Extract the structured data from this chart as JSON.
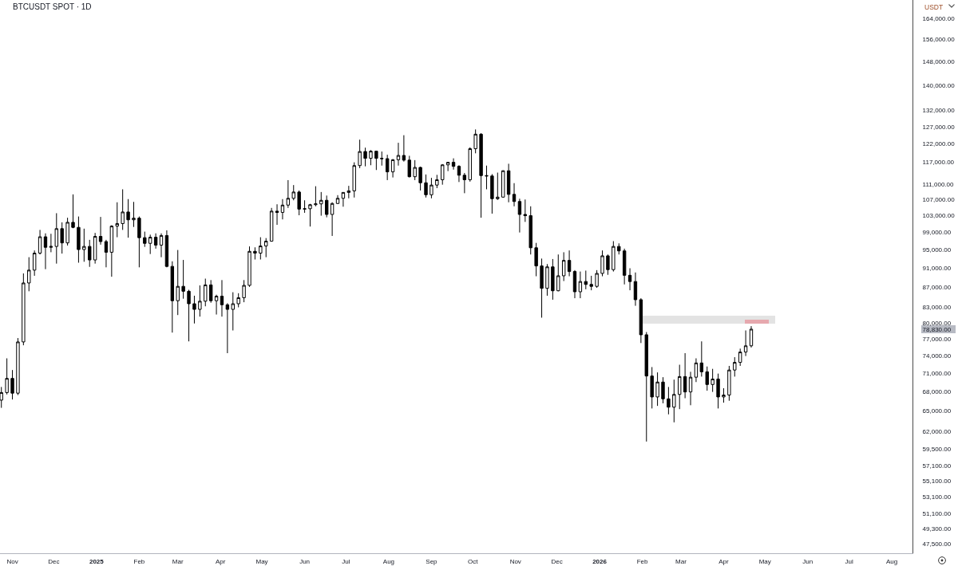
{
  "chart_data": {
    "type": "candlestick",
    "title": "BTCUSDT SPOT · 1D",
    "ylabel": "USDT",
    "color": "#000000",
    "log": true,
    "grid": false,
    "xlim": [
      "2024-10-23",
      "2026-08-16"
    ],
    "ylim": [
      46500,
      171200
    ],
    "xticks": [
      {
        "value": "2024-11-01",
        "label": "Nov"
      },
      {
        "value": "2024-12-01",
        "label": "Dec"
      },
      {
        "value": "2025-01-01",
        "label": "2025"
      },
      {
        "value": "2025-02-01",
        "label": "Feb"
      },
      {
        "value": "2025-03-01",
        "label": "Mar"
      },
      {
        "value": "2025-04-01",
        "label": "Apr"
      },
      {
        "value": "2025-05-01",
        "label": "May"
      },
      {
        "value": "2025-06-01",
        "label": "Jun"
      },
      {
        "value": "2025-07-01",
        "label": "Jul"
      },
      {
        "value": "2025-08-01",
        "label": "Aug"
      },
      {
        "value": "2025-09-01",
        "label": "Sep"
      },
      {
        "value": "2025-10-01",
        "label": "Oct"
      },
      {
        "value": "2025-11-01",
        "label": "Nov"
      },
      {
        "value": "2025-12-01",
        "label": "Dec"
      },
      {
        "value": "2026-01-01",
        "label": "2026"
      },
      {
        "value": "2026-02-01",
        "label": "Feb"
      },
      {
        "value": "2026-03-01",
        "label": "Mar"
      },
      {
        "value": "2026-04-01",
        "label": "Apr"
      },
      {
        "value": "2026-05-01",
        "label": "May"
      },
      {
        "value": "2026-06-01",
        "label": "Jun"
      },
      {
        "value": "2026-07-01",
        "label": "Jul"
      },
      {
        "value": "2026-08-01",
        "label": "Aug"
      }
    ],
    "yticks": [
      {
        "value": 164000,
        "label": "164,000.00"
      },
      {
        "value": 156000,
        "label": "156,000.00"
      },
      {
        "value": 148000,
        "label": "148,000.00"
      },
      {
        "value": 140000,
        "label": "140,000.00"
      },
      {
        "value": 132000,
        "label": "132,000.00"
      },
      {
        "value": 127000,
        "label": "127,000.00"
      },
      {
        "value": 122000,
        "label": "122,000.00"
      },
      {
        "value": 117000,
        "label": "117,000.00"
      },
      {
        "value": 111000,
        "label": "111,000.00"
      },
      {
        "value": 107000,
        "label": "107,000.00"
      },
      {
        "value": 103000,
        "label": "103,000.00"
      },
      {
        "value": 99000,
        "label": "99,000.00"
      },
      {
        "value": 95000,
        "label": "95,000.00"
      },
      {
        "value": 91000,
        "label": "91,000.00"
      },
      {
        "value": 87000,
        "label": "87,000.00"
      },
      {
        "value": 83000,
        "label": "83,000.00"
      },
      {
        "value": 80000,
        "label": "80,000.00"
      },
      {
        "value": 78830,
        "label": "78,830.00"
      },
      {
        "value": 77000,
        "label": "77,000.00"
      },
      {
        "value": 74000,
        "label": "74,000.00"
      },
      {
        "value": 71000,
        "label": "71,000.00"
      },
      {
        "value": 68000,
        "label": "68,000.00"
      },
      {
        "value": 65000,
        "label": "65,000.00"
      },
      {
        "value": 62000,
        "label": "62,000.00"
      },
      {
        "value": 59500,
        "label": "59,500.00"
      },
      {
        "value": 57100,
        "label": "57,100.00"
      },
      {
        "value": 55100,
        "label": "55,100.00"
      },
      {
        "value": 53100,
        "label": "53,100.00"
      },
      {
        "value": 51100,
        "label": "51,100.00"
      },
      {
        "value": 49300,
        "label": "49,300.00"
      },
      {
        "value": 47500,
        "label": "47,500.00"
      }
    ],
    "x": [
      "2024-10-24",
      "2024-10-28",
      "2024-11-01",
      "2024-11-05",
      "2024-11-09",
      "2024-11-13",
      "2024-11-17",
      "2024-11-21",
      "2024-11-25",
      "2024-11-29",
      "2024-12-03",
      "2024-12-07",
      "2024-12-11",
      "2024-12-15",
      "2024-12-19",
      "2024-12-23",
      "2024-12-27",
      "2024-12-31",
      "2025-01-04",
      "2025-01-08",
      "2025-01-12",
      "2025-01-16",
      "2025-01-20",
      "2025-01-24",
      "2025-01-28",
      "2025-02-01",
      "2025-02-05",
      "2025-02-09",
      "2025-02-13",
      "2025-02-17",
      "2025-02-21",
      "2025-02-25",
      "2025-03-01",
      "2025-03-05",
      "2025-03-09",
      "2025-03-13",
      "2025-03-17",
      "2025-03-21",
      "2025-03-25",
      "2025-03-29",
      "2025-04-02",
      "2025-04-06",
      "2025-04-10",
      "2025-04-14",
      "2025-04-18",
      "2025-04-22",
      "2025-04-26",
      "2025-04-30",
      "2025-05-04",
      "2025-05-08",
      "2025-05-12",
      "2025-05-16",
      "2025-05-20",
      "2025-05-24",
      "2025-05-28",
      "2025-06-01",
      "2025-06-05",
      "2025-06-09",
      "2025-06-13",
      "2025-06-17",
      "2025-06-21",
      "2025-06-25",
      "2025-06-29",
      "2025-07-03",
      "2025-07-07",
      "2025-07-11",
      "2025-07-15",
      "2025-07-19",
      "2025-07-23",
      "2025-07-27",
      "2025-07-31",
      "2025-08-04",
      "2025-08-08",
      "2025-08-12",
      "2025-08-16",
      "2025-08-20",
      "2025-08-24",
      "2025-08-28",
      "2025-09-01",
      "2025-09-05",
      "2025-09-09",
      "2025-09-13",
      "2025-09-17",
      "2025-09-21",
      "2025-09-25",
      "2025-09-29",
      "2025-10-03",
      "2025-10-07",
      "2025-10-11",
      "2025-10-15",
      "2025-10-19",
      "2025-10-23",
      "2025-10-27",
      "2025-10-31",
      "2025-11-04",
      "2025-11-08",
      "2025-11-12",
      "2025-11-16",
      "2025-11-20",
      "2025-11-24",
      "2025-11-28",
      "2025-12-02",
      "2025-12-06",
      "2025-12-10",
      "2025-12-14",
      "2025-12-18",
      "2025-12-22",
      "2025-12-26",
      "2025-12-30",
      "2026-01-03",
      "2026-01-07",
      "2026-01-11",
      "2026-01-15",
      "2026-01-19",
      "2026-01-23",
      "2026-01-27",
      "2026-01-31",
      "2026-02-04",
      "2026-02-08",
      "2026-02-12",
      "2026-02-16",
      "2026-02-20",
      "2026-02-24",
      "2026-02-28",
      "2026-03-04",
      "2026-03-08",
      "2026-03-12",
      "2026-03-16",
      "2026-03-20",
      "2026-03-24",
      "2026-03-28",
      "2026-04-01",
      "2026-04-05",
      "2026-04-09",
      "2026-04-13",
      "2026-04-17",
      "2026-04-21"
    ],
    "ohlc": [
      [
        66700,
        68800,
        65500,
        67900
      ],
      [
        67900,
        73600,
        67600,
        70200
      ],
      [
        70200,
        71600,
        66800,
        67800
      ],
      [
        67800,
        77200,
        67500,
        76500
      ],
      [
        76500,
        89900,
        75900,
        87900
      ],
      [
        87900,
        93400,
        86200,
        90600
      ],
      [
        90600,
        94900,
        89400,
        94300
      ],
      [
        94300,
        99600,
        94000,
        98000
      ],
      [
        98000,
        98800,
        90800,
        95600
      ],
      [
        95600,
        98700,
        94500,
        95800
      ],
      [
        95800,
        103600,
        92000,
        99900
      ],
      [
        99900,
        101400,
        94200,
        96600
      ],
      [
        96600,
        102500,
        96000,
        101400
      ],
      [
        101400,
        108300,
        100000,
        100200
      ],
      [
        100200,
        102800,
        92200,
        95100
      ],
      [
        95100,
        99900,
        92400,
        95800
      ],
      [
        95800,
        97300,
        91300,
        92800
      ],
      [
        92800,
        98900,
        92000,
        98100
      ],
      [
        98100,
        102700,
        96200,
        96900
      ],
      [
        96900,
        97300,
        91200,
        94500
      ],
      [
        94500,
        100700,
        89200,
        100500
      ],
      [
        100500,
        106300,
        97900,
        101100
      ],
      [
        101100,
        109600,
        99600,
        103900
      ],
      [
        103900,
        107100,
        97800,
        102000
      ],
      [
        102000,
        106400,
        100300,
        102400
      ],
      [
        102400,
        102800,
        91200,
        97800
      ],
      [
        97800,
        99200,
        95700,
        96500
      ],
      [
        96500,
        98500,
        94100,
        97900
      ],
      [
        97900,
        98800,
        95300,
        96100
      ],
      [
        96100,
        98800,
        93400,
        98300
      ],
      [
        98300,
        99500,
        91200,
        91400
      ],
      [
        91400,
        92500,
        78200,
        84300
      ],
      [
        84300,
        95000,
        81500,
        87200
      ],
      [
        87200,
        92800,
        84700,
        86200
      ],
      [
        86200,
        86500,
        76600,
        83700
      ],
      [
        83700,
        85300,
        79900,
        82600
      ],
      [
        82600,
        87400,
        81200,
        84200
      ],
      [
        84200,
        88800,
        83200,
        87500
      ],
      [
        87500,
        88500,
        83900,
        84300
      ],
      [
        84300,
        85500,
        81600,
        85200
      ],
      [
        85200,
        88500,
        81200,
        83500
      ],
      [
        83500,
        83800,
        74500,
        82600
      ],
      [
        82600,
        86000,
        78600,
        83700
      ],
      [
        83700,
        85800,
        83000,
        84900
      ],
      [
        84900,
        88500,
        84000,
        87400
      ],
      [
        87400,
        95800,
        87100,
        94700
      ],
      [
        94700,
        95600,
        92900,
        94300
      ],
      [
        94300,
        97900,
        92900,
        95900
      ],
      [
        95900,
        97700,
        93400,
        97000
      ],
      [
        97000,
        104900,
        96900,
        104100
      ],
      [
        104100,
        105800,
        100800,
        103800
      ],
      [
        103800,
        107100,
        102100,
        105600
      ],
      [
        105600,
        112000,
        104900,
        107300
      ],
      [
        107300,
        110700,
        106800,
        108900
      ],
      [
        108900,
        109300,
        103100,
        104600
      ],
      [
        104600,
        106800,
        103700,
        104700
      ],
      [
        104700,
        105900,
        100400,
        105700
      ],
      [
        105700,
        110400,
        105300,
        105900
      ],
      [
        105900,
        108900,
        103000,
        106800
      ],
      [
        106800,
        108000,
        102600,
        103300
      ],
      [
        103300,
        106300,
        98200,
        106000
      ],
      [
        106000,
        108100,
        105900,
        107300
      ],
      [
        107300,
        108800,
        105200,
        108800
      ],
      [
        108800,
        110500,
        107300,
        109200
      ],
      [
        109200,
        116800,
        107500,
        115900
      ],
      [
        115900,
        123200,
        115200,
        119800
      ],
      [
        119800,
        120900,
        115700,
        117900
      ],
      [
        117900,
        120200,
        116000,
        119900
      ],
      [
        119900,
        120000,
        114700,
        117900
      ],
      [
        117900,
        119800,
        115900,
        117800
      ],
      [
        117800,
        118900,
        112000,
        114200
      ],
      [
        114200,
        117700,
        112700,
        117500
      ],
      [
        117500,
        122300,
        115900,
        118700
      ],
      [
        118700,
        124500,
        117000,
        117400
      ],
      [
        117400,
        118600,
        112700,
        112900
      ],
      [
        112900,
        117400,
        112000,
        115400
      ],
      [
        115400,
        115600,
        109300,
        111300
      ],
      [
        111300,
        113500,
        107500,
        108200
      ],
      [
        108200,
        112600,
        107300,
        110700
      ],
      [
        110700,
        113400,
        109900,
        112100
      ],
      [
        112100,
        116300,
        110800,
        116100
      ],
      [
        116100,
        116800,
        114400,
        116800
      ],
      [
        116800,
        117900,
        114800,
        115700
      ],
      [
        115700,
        116000,
        111500,
        113300
      ],
      [
        113300,
        113900,
        108600,
        112100
      ],
      [
        112100,
        121000,
        111600,
        120600
      ],
      [
        120600,
        126200,
        119300,
        124800
      ],
      [
        124800,
        125100,
        102500,
        113200
      ],
      [
        113200,
        115900,
        109600,
        113100
      ],
      [
        113100,
        113600,
        103500,
        107200
      ],
      [
        107200,
        114000,
        106900,
        107600
      ],
      [
        107600,
        114600,
        107500,
        114500
      ],
      [
        114500,
        116400,
        106300,
        108300
      ],
      [
        108300,
        111200,
        105300,
        106500
      ],
      [
        106500,
        107200,
        99000,
        103300
      ],
      [
        103300,
        107000,
        101500,
        103000
      ],
      [
        103000,
        105300,
        94000,
        95500
      ],
      [
        95500,
        96600,
        89300,
        91500
      ],
      [
        91500,
        93100,
        81000,
        86800
      ],
      [
        86800,
        91900,
        85300,
        91300
      ],
      [
        91300,
        93000,
        84500,
        86300
      ],
      [
        86300,
        94000,
        86200,
        89400
      ],
      [
        89400,
        94500,
        88300,
        92700
      ],
      [
        92700,
        94900,
        89300,
        90300
      ],
      [
        90300,
        90600,
        84800,
        86100
      ],
      [
        86100,
        90300,
        84800,
        88200
      ],
      [
        88200,
        90500,
        86600,
        87600
      ],
      [
        87600,
        89400,
        86400,
        87200
      ],
      [
        87200,
        90600,
        86900,
        89900
      ],
      [
        89900,
        94900,
        89300,
        93700
      ],
      [
        93700,
        94000,
        89600,
        90700
      ],
      [
        90700,
        97000,
        90300,
        95800
      ],
      [
        95800,
        96500,
        94000,
        94800
      ],
      [
        94800,
        95300,
        87600,
        89500
      ],
      [
        89500,
        91000,
        86400,
        88200
      ],
      [
        88200,
        90100,
        83300,
        84500
      ],
      [
        84500,
        84800,
        76300,
        77800
      ],
      [
        77800,
        78300,
        60500,
        70600
      ],
      [
        70600,
        72100,
        65400,
        67200
      ],
      [
        67200,
        71200,
        65800,
        69600
      ],
      [
        69600,
        70400,
        66200,
        66900
      ],
      [
        66900,
        68800,
        64500,
        65600
      ],
      [
        65600,
        70000,
        63300,
        67600
      ],
      [
        67600,
        72500,
        65300,
        70500
      ],
      [
        70500,
        74500,
        67000,
        68000
      ],
      [
        68000,
        71300,
        65900,
        70400
      ],
      [
        70400,
        73600,
        69600,
        72800
      ],
      [
        72800,
        76600,
        70500,
        71300
      ],
      [
        71300,
        72200,
        68200,
        69200
      ],
      [
        69200,
        71800,
        68000,
        70100
      ],
      [
        70100,
        71000,
        65400,
        67200
      ],
      [
        67200,
        68600,
        66300,
        67500
      ],
      [
        67500,
        72300,
        66600,
        71600
      ],
      [
        71600,
        73800,
        70500,
        72900
      ],
      [
        72900,
        75300,
        72300,
        74700
      ],
      [
        74700,
        78600,
        74000,
        75800
      ],
      [
        75800,
        79400,
        75500,
        78830
      ]
    ]
  }
}
